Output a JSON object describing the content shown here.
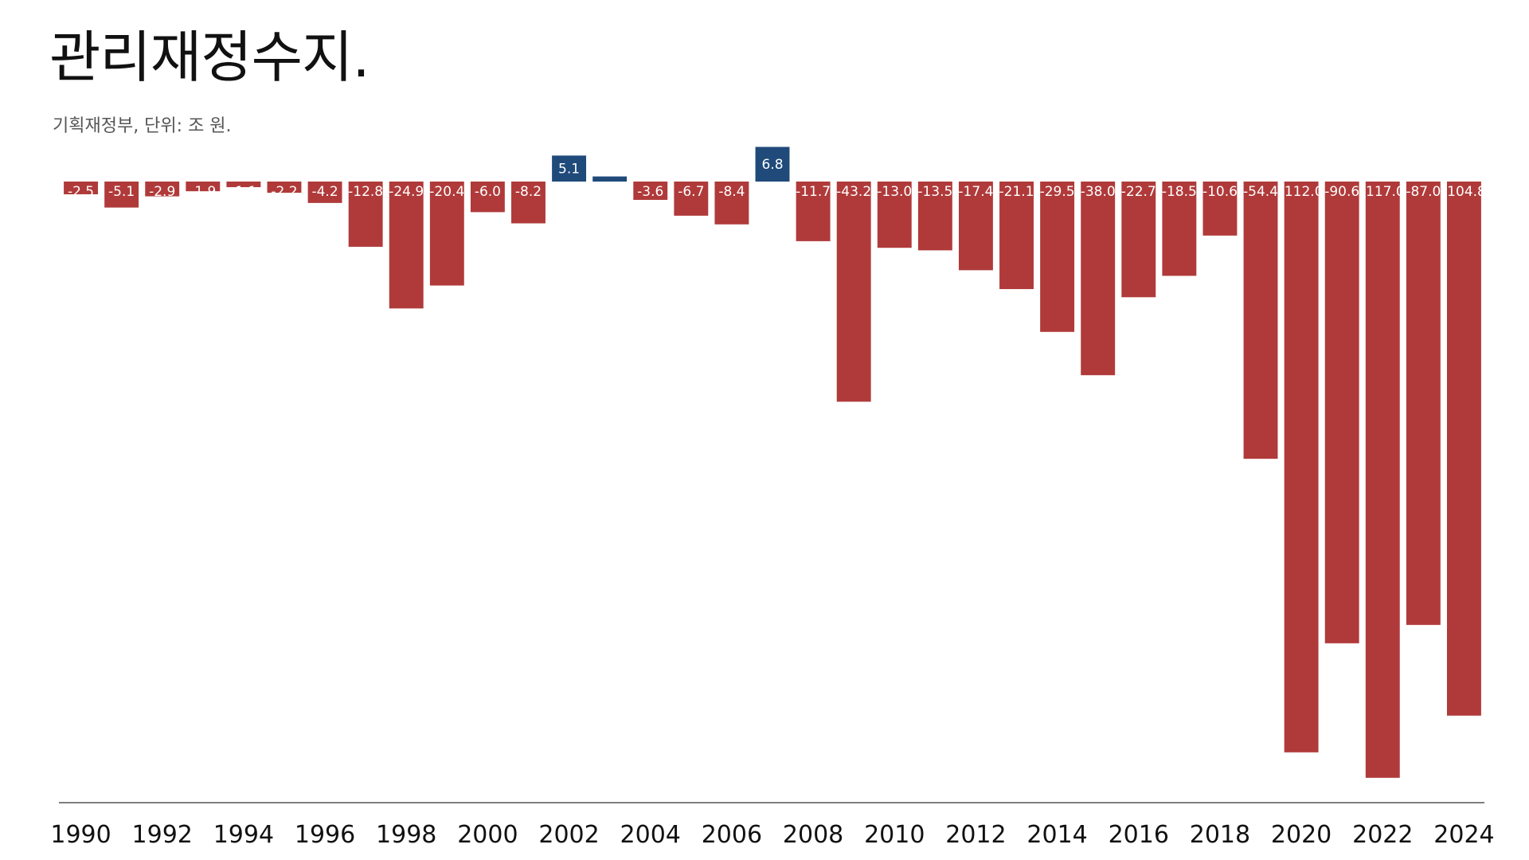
{
  "title": "관리재정수지.",
  "subtitle": "기획재정부, 단위: 조 원.",
  "colors": {
    "negative": "#b03a3a",
    "positive": "#1f4a7a",
    "axis": "#555555"
  },
  "chart_data": {
    "type": "bar",
    "title": "관리재정수지.",
    "subtitle": "기획재정부, 단위: 조 원.",
    "categories": [
      "1990",
      "1991",
      "1992",
      "1993",
      "1994",
      "1995",
      "1996",
      "1997",
      "1998",
      "1999",
      "2000",
      "2001",
      "2002",
      "2003",
      "2004",
      "2005",
      "2006",
      "2007",
      "2008",
      "2009",
      "2010",
      "2011",
      "2012",
      "2013",
      "2014",
      "2015",
      "2016",
      "2017",
      "2018",
      "2019",
      "2020",
      "2021",
      "2022",
      "2023",
      "2024"
    ],
    "values": [
      -2.5,
      -5.1,
      -2.9,
      -1.9,
      -1.1,
      -2.2,
      -4.2,
      -12.8,
      -24.9,
      -20.4,
      -6.0,
      -8.2,
      5.1,
      1.0,
      -3.6,
      -6.7,
      -8.4,
      6.8,
      -11.7,
      -43.2,
      -13.0,
      -13.5,
      -17.4,
      -21.1,
      -29.5,
      -38.0,
      -22.7,
      -18.5,
      -10.6,
      -54.4,
      -112.0,
      -90.6,
      -117.0,
      -87.0,
      -104.8
    ],
    "labels": [
      "-2.5",
      "-5.1",
      "-2.9",
      "-1.9",
      "-1.1",
      "-2.2",
      "-4.2",
      "-12.8",
      "-24.9",
      "-20.4",
      "-6.0",
      "-8.2",
      "5.1",
      "",
      "-3.6",
      "-6.7",
      "-8.4",
      "6.8",
      "-11.7",
      "-43.2",
      "-13.0",
      "-13.5",
      "-17.4",
      "-21.1",
      "-29.5",
      "-38.0",
      "-22.7",
      "-18.5",
      "-10.6",
      "-54.4",
      "-112.0",
      "-90.6",
      "-117.0",
      "-87.0",
      "-104.8"
    ],
    "x_tick_labels": [
      "1990",
      "1992",
      "1994",
      "1996",
      "1998",
      "2000",
      "2002",
      "2004",
      "2006",
      "2008",
      "2010",
      "2012",
      "2014",
      "2016",
      "2018",
      "2020",
      "2022",
      "2024"
    ],
    "xlabel": "",
    "ylabel": "",
    "ylim": [
      -120,
      8
    ],
    "grid": false,
    "legend": "none"
  }
}
